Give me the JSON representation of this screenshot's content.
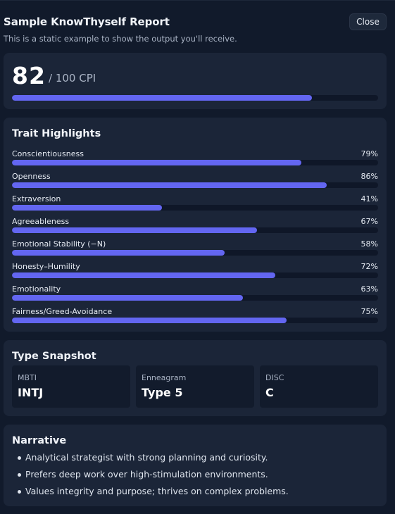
{
  "header": {
    "title": "Sample KnowThyself Report",
    "subtitle": "This is a static example to show the output you'll receive.",
    "close_label": "Close"
  },
  "score": {
    "value": "82",
    "suffix": "/ 100 CPI",
    "percent": 82
  },
  "traits": {
    "title": "Trait Highlights",
    "items": [
      {
        "label": "Conscientiousness",
        "pct": "79%",
        "value": 79
      },
      {
        "label": "Openness",
        "pct": "86%",
        "value": 86
      },
      {
        "label": "Extraversion",
        "pct": "41%",
        "value": 41
      },
      {
        "label": "Agreeableness",
        "pct": "67%",
        "value": 67
      },
      {
        "label": "Emotional Stability (−N)",
        "pct": "58%",
        "value": 58
      },
      {
        "label": "Honesty–Humility",
        "pct": "72%",
        "value": 72
      },
      {
        "label": "Emotionality",
        "pct": "63%",
        "value": 63
      },
      {
        "label": "Fairness/Greed-Avoidance",
        "pct": "75%",
        "value": 75
      }
    ]
  },
  "type_snapshot": {
    "title": "Type Snapshot",
    "boxes": [
      {
        "label": "MBTI",
        "value": "INTJ"
      },
      {
        "label": "Enneagram",
        "value": "Type 5"
      },
      {
        "label": "DISC",
        "value": "C"
      }
    ]
  },
  "narrative": {
    "title": "Narrative",
    "items": [
      "Analytical strategist with strong planning and curiosity.",
      "Prefers deep work over high-stimulation environments.",
      "Values integrity and purpose; thrives on complex problems."
    ]
  },
  "colors": {
    "accent": "#6366f1",
    "card": "#1b2538",
    "background": "#111a2b"
  }
}
